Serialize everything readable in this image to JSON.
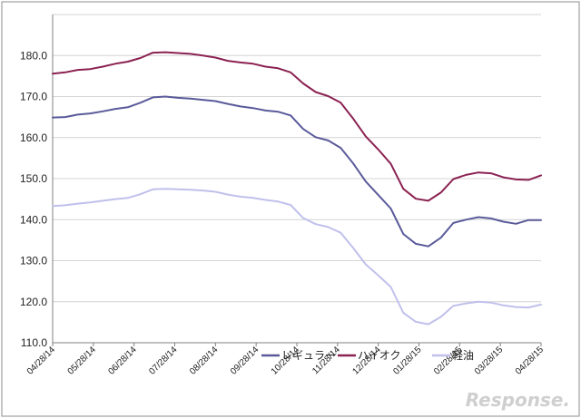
{
  "chart_data": {
    "type": "line",
    "title": "",
    "xlabel": "",
    "ylabel": "",
    "ylim": [
      110,
      190
    ],
    "yticks": [
      "110.0",
      "120.0",
      "130.0",
      "140.0",
      "150.0",
      "160.0",
      "170.0",
      "180.0"
    ],
    "x_tick_labels": [
      "04/28/14",
      "05/28/14",
      "06/28/14",
      "07/28/14",
      "08/28/14",
      "09/28/14",
      "10/28/14",
      "11/28/14",
      "12/28/14",
      "01/28/15",
      "02/28/15",
      "03/28/15",
      "04/28/15"
    ],
    "grid": true,
    "legend_position": "bottom-right",
    "series": [
      {
        "name": "レギュラー",
        "color": "#5a5a9a",
        "values": [
          164.9,
          165.0,
          165.6,
          165.9,
          166.4,
          167.0,
          167.4,
          168.5,
          169.8,
          170.0,
          169.7,
          169.5,
          169.2,
          168.9,
          168.2,
          167.6,
          167.2,
          166.6,
          166.3,
          165.4,
          162.1,
          160.1,
          159.3,
          157.5,
          153.7,
          149.3,
          146.0,
          142.7,
          136.5,
          134.1,
          133.5,
          135.6,
          139.2,
          140.0,
          140.6,
          140.3,
          139.5,
          139.0,
          139.9,
          139.9
        ]
      },
      {
        "name": "ハイオク",
        "color": "#8b2252",
        "values": [
          175.6,
          175.9,
          176.5,
          176.7,
          177.3,
          178.0,
          178.5,
          179.4,
          180.7,
          180.8,
          180.6,
          180.4,
          180.0,
          179.5,
          178.7,
          178.3,
          178.0,
          177.3,
          176.9,
          175.9,
          173.2,
          171.1,
          170.1,
          168.5,
          164.6,
          160.3,
          157.1,
          153.6,
          147.5,
          145.1,
          144.6,
          146.6,
          149.9,
          150.9,
          151.5,
          151.3,
          150.3,
          149.8,
          149.7,
          150.8
        ]
      },
      {
        "name": "軽油",
        "color": "#c0c0ec",
        "values": [
          143.3,
          143.5,
          143.9,
          144.2,
          144.6,
          145.0,
          145.3,
          146.2,
          147.4,
          147.5,
          147.4,
          147.3,
          147.1,
          146.8,
          146.1,
          145.6,
          145.3,
          144.8,
          144.4,
          143.6,
          140.4,
          138.9,
          138.2,
          136.8,
          133.1,
          129.1,
          126.4,
          123.6,
          117.3,
          115.1,
          114.5,
          116.3,
          119.0,
          119.6,
          120.0,
          119.8,
          119.1,
          118.7,
          118.6,
          119.3
        ]
      }
    ]
  },
  "watermark": "Response."
}
